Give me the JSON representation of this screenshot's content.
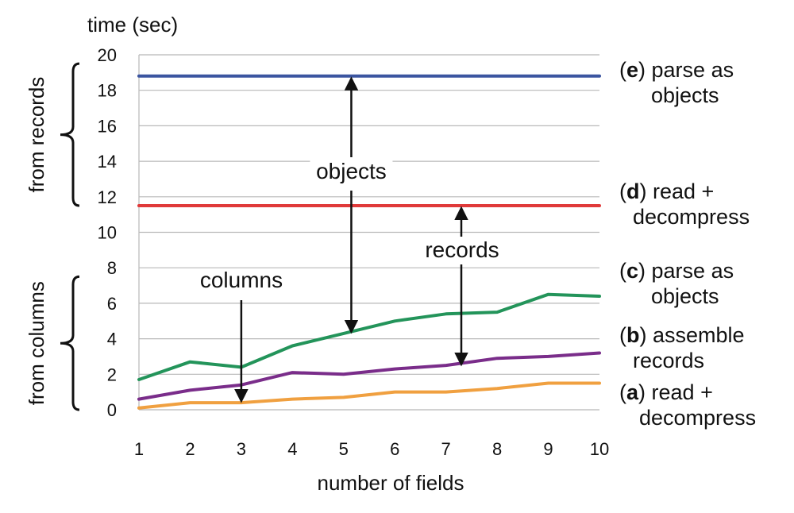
{
  "chart_data": {
    "type": "line",
    "ylabel": "time (sec)",
    "xlabel": "number of fields",
    "x": [
      1,
      2,
      3,
      4,
      5,
      6,
      7,
      8,
      9,
      10
    ],
    "xlim": [
      1,
      10
    ],
    "ylim": [
      0,
      20
    ],
    "yticks": [
      0,
      2,
      4,
      6,
      8,
      10,
      12,
      14,
      16,
      18,
      20
    ],
    "grid": "horizontal",
    "series": [
      {
        "key": "e",
        "label": "parse as objects",
        "color": "#3b55a0",
        "values": [
          18.8,
          18.8,
          18.8,
          18.8,
          18.8,
          18.8,
          18.8,
          18.8,
          18.8,
          18.8
        ]
      },
      {
        "key": "d",
        "label": "read + decompress",
        "color": "#e03a3a",
        "values": [
          11.5,
          11.5,
          11.5,
          11.5,
          11.5,
          11.5,
          11.5,
          11.5,
          11.5,
          11.5
        ]
      },
      {
        "key": "c",
        "label": "parse as objects",
        "color": "#23945a",
        "values": [
          1.7,
          2.7,
          2.4,
          3.6,
          4.3,
          5.0,
          5.4,
          5.5,
          6.5,
          6.4
        ]
      },
      {
        "key": "b",
        "label": "assemble records",
        "color": "#7a2d8a",
        "values": [
          0.6,
          1.1,
          1.4,
          2.1,
          2.0,
          2.3,
          2.5,
          2.9,
          3.0,
          3.2
        ]
      },
      {
        "key": "a",
        "label": "read + decompress",
        "color": "#f0a040",
        "values": [
          0.1,
          0.4,
          0.4,
          0.6,
          0.7,
          1.0,
          1.0,
          1.2,
          1.5,
          1.5
        ]
      }
    ],
    "annotations": [
      {
        "text": "objects",
        "arrow_x": 5.15,
        "from": 4.3,
        "to": 18.8
      },
      {
        "text": "records",
        "arrow_x": 7.3,
        "from": 2.6,
        "to": 11.5
      },
      {
        "text": "columns",
        "arrow_x": 3.0,
        "from": 7.0,
        "to": 0.4
      }
    ],
    "groups": [
      {
        "label": "from records",
        "range": [
          11.5,
          19.5
        ]
      },
      {
        "label": "from columns",
        "range": [
          0,
          7.5
        ]
      }
    ]
  }
}
